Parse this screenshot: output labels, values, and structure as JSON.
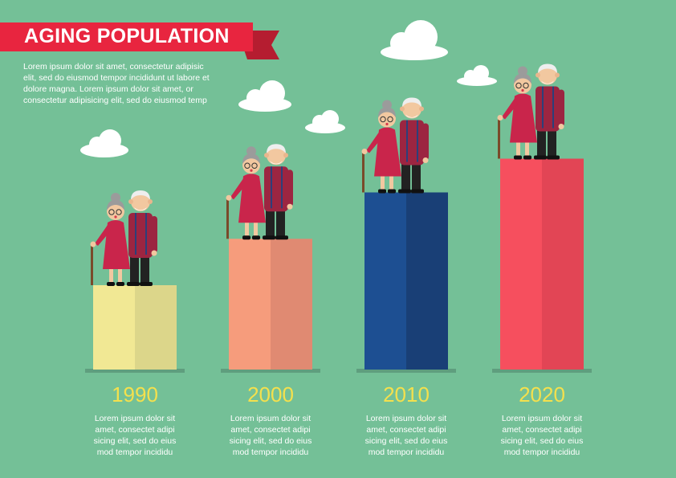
{
  "header": {
    "title": "AGING POPULATION",
    "intro": "Lorem ipsum dolor sit amet, consectetur adipisic elit, sed do eiusmod tempor incididunt ut labore et dolore magna. Lorem ipsum dolor sit amet, or consectetur adipisicing elit, sed do eiusmod temp",
    "banner_color": "#e8253f"
  },
  "chart_data": {
    "type": "bar",
    "categories": [
      "1990",
      "2000",
      "2010",
      "2020"
    ],
    "values": [
      1,
      1.55,
      2.1,
      2.5
    ],
    "title": "AGING POPULATION",
    "xlabel": "",
    "ylabel": "",
    "grid": false,
    "bar_colors": [
      {
        "light": "#f1e894",
        "dark": "#dcd68a"
      },
      {
        "light": "#f69c7c",
        "dark": "#e08a72"
      },
      {
        "light": "#1d4f92",
        "dark": "#193f76"
      },
      {
        "light": "#f64f5e",
        "dark": "#e24555"
      }
    ]
  },
  "bars": [
    {
      "year": "1990",
      "desc_lines": [
        "Lorem ipsum dolor sit",
        "amet, consectet adipi",
        "sicing elit, sed do eius",
        "mod tempor incididu"
      ]
    },
    {
      "year": "2000",
      "desc_lines": [
        "Lorem ipsum dolor sit",
        "amet, consectet adipi",
        "sicing elit, sed do eius",
        "mod tempor incididu"
      ]
    },
    {
      "year": "2010",
      "desc_lines": [
        "Lorem ipsum dolor sit",
        "amet, consectet adipi",
        "sicing elit, sed do eius",
        "mod tempor incididu"
      ]
    },
    {
      "year": "2020",
      "desc_lines": [
        "Lorem ipsum dolor sit",
        "amet, consectet adipi",
        "sicing elit, sed do eius",
        "mod tempor incididu"
      ]
    }
  ],
  "colors": {
    "background": "#74c097",
    "year_text": "#f4e04d",
    "baseline": "#5f9e7e",
    "cloud": "#ffffff"
  }
}
